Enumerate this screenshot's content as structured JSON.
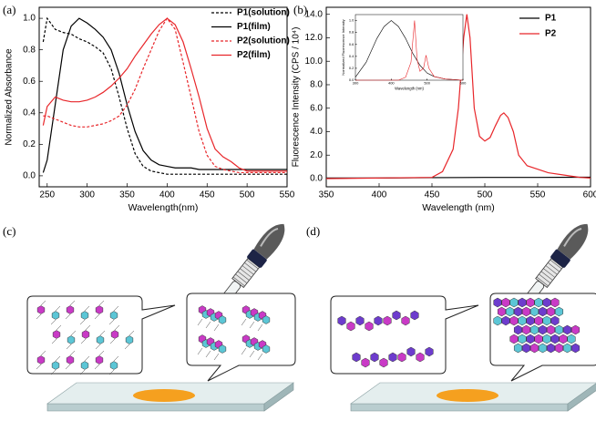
{
  "chart_data": [
    {
      "type": "line",
      "panel_label": "(a)",
      "x_label": "Wavelength(nm)",
      "y_label": "Normalized Absorbance",
      "xlim": [
        240,
        550
      ],
      "xticks": [
        250,
        300,
        350,
        400,
        450,
        500,
        550
      ],
      "ylim": [
        -0.07,
        1.07
      ],
      "yticks": [
        {
          "value": 0,
          "label": "0.0"
        },
        0.2,
        0.4,
        0.6,
        0.8,
        {
          "value": 1,
          "label": "1.0"
        }
      ],
      "legend": "upper right",
      "x": [
        245,
        250,
        260,
        270,
        280,
        290,
        300,
        310,
        320,
        330,
        340,
        350,
        360,
        370,
        380,
        390,
        400,
        410,
        420,
        430,
        440,
        450,
        460,
        470,
        480,
        490,
        500,
        525,
        550
      ],
      "series": [
        {
          "name": "P1(solution)",
          "color": "#000000",
          "dash": true,
          "values": [
            0.85,
            1.0,
            0.93,
            0.91,
            0.9,
            0.87,
            0.85,
            0.82,
            0.78,
            0.68,
            0.5,
            0.3,
            0.14,
            0.06,
            0.03,
            0.02,
            0.01,
            0.01,
            0.01,
            0.01,
            0.01,
            0.01,
            0.01,
            0.01,
            0.01,
            0.01,
            0.01,
            0.01,
            0.01
          ]
        },
        {
          "name": "P1(film)",
          "color": "#000000",
          "dash": false,
          "values": [
            0.02,
            0.1,
            0.45,
            0.8,
            0.95,
            1.0,
            0.97,
            0.93,
            0.88,
            0.8,
            0.65,
            0.45,
            0.28,
            0.16,
            0.1,
            0.07,
            0.06,
            0.05,
            0.05,
            0.05,
            0.04,
            0.04,
            0.04,
            0.04,
            0.04,
            0.04,
            0.04,
            0.04,
            0.04
          ]
        },
        {
          "name": "P2(solution)",
          "color": "#e8262a",
          "dash": true,
          "values": [
            0.38,
            0.38,
            0.36,
            0.34,
            0.32,
            0.31,
            0.31,
            0.32,
            0.33,
            0.35,
            0.38,
            0.45,
            0.55,
            0.68,
            0.8,
            0.92,
            1.0,
            0.93,
            0.72,
            0.5,
            0.28,
            0.13,
            0.06,
            0.04,
            0.03,
            0.02,
            0.02,
            0.02,
            0.02
          ]
        },
        {
          "name": "P2(film)",
          "color": "#e8262a",
          "dash": false,
          "values": [
            0.32,
            0.44,
            0.5,
            0.48,
            0.47,
            0.47,
            0.48,
            0.5,
            0.53,
            0.57,
            0.62,
            0.68,
            0.76,
            0.83,
            0.9,
            0.96,
            1.0,
            0.96,
            0.85,
            0.68,
            0.5,
            0.3,
            0.17,
            0.12,
            0.09,
            0.05,
            0.03,
            0.03,
            0.03
          ]
        }
      ]
    },
    {
      "type": "line",
      "panel_label": "(b)",
      "x_label": "Wavelength (nm)",
      "y_label": "Fluorescence Intensity (CPS / 10⁴)",
      "xlim": [
        350,
        600
      ],
      "xticks": [
        350,
        400,
        450,
        500,
        550,
        600
      ],
      "ylim": [
        -0.7,
        14.6
      ],
      "yticks": [
        {
          "value": 0,
          "label": "0.0"
        },
        {
          "value": 2,
          "label": "2.0"
        },
        {
          "value": 4,
          "label": "4.0"
        },
        {
          "value": 6,
          "label": "6.0"
        },
        {
          "value": 8,
          "label": "8.0"
        },
        {
          "value": 10,
          "label": "10.0"
        },
        {
          "value": 12,
          "label": "12.0"
        },
        {
          "value": 14,
          "label": "14.0"
        }
      ],
      "legend": "upper right",
      "series": [
        {
          "name": "P1",
          "color": "#000000",
          "x": [
            350,
            400,
            450,
            500,
            550,
            600
          ],
          "values": [
            0.05,
            0.05,
            0.08,
            0.1,
            0.1,
            0.12
          ]
        },
        {
          "name": "P2",
          "color": "#e8262a",
          "x": [
            350,
            450,
            460,
            470,
            475,
            480,
            483,
            486,
            490,
            495,
            500,
            505,
            510,
            515,
            518,
            522,
            527,
            532,
            540,
            550,
            560,
            575,
            590,
            600
          ],
          "values": [
            0,
            0.1,
            0.6,
            2.5,
            6,
            12,
            14,
            12,
            6,
            3.6,
            3.2,
            3.5,
            4.5,
            5.4,
            5.6,
            5.2,
            4,
            2,
            1.1,
            0.8,
            0.5,
            0.3,
            0.1,
            0.05
          ]
        }
      ]
    },
    {
      "type": "line",
      "x_label": "Wavelength (nm)",
      "y_label": "Normalized Fluorescence Intensity",
      "xlim": [
        300,
        600
      ],
      "xticks": [
        300,
        400,
        500,
        600
      ],
      "ylim": [
        0,
        1.1
      ],
      "yticks": [
        {
          "value": 0,
          "label": "0.0"
        },
        0.2,
        0.4,
        0.6,
        0.8,
        {
          "value": 1,
          "label": "1.0"
        }
      ],
      "series": [
        {
          "color": "#000000",
          "x": [
            300,
            330,
            360,
            380,
            400,
            420,
            440,
            460,
            480,
            500,
            520,
            550,
            600
          ],
          "values": [
            0.05,
            0.3,
            0.7,
            0.9,
            1.0,
            0.9,
            0.7,
            0.45,
            0.25,
            0.12,
            0.06,
            0.02,
            0
          ]
        },
        {
          "color": "#e8262a",
          "x": [
            300,
            420,
            440,
            455,
            465,
            472,
            480,
            490,
            497,
            505,
            520,
            550,
            600
          ],
          "values": [
            0,
            0,
            0.05,
            0.3,
            1.0,
            0.35,
            0.15,
            0.2,
            0.42,
            0.2,
            0.06,
            0.02,
            0
          ]
        }
      ]
    }
  ],
  "illustrations": [
    {
      "label": "(c)"
    },
    {
      "label": "(d)"
    }
  ]
}
